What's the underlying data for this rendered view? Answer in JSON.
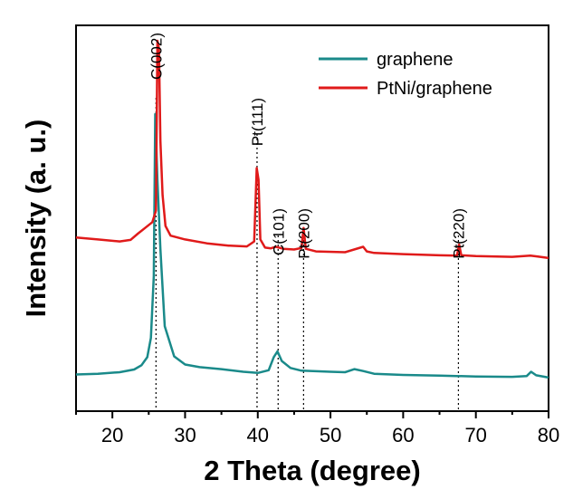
{
  "chart_data": {
    "type": "line",
    "xlabel": "2 Theta (degree)",
    "ylabel": "Intensity (a. u.)",
    "xlim": [
      15,
      80
    ],
    "ylim": [
      0,
      100
    ],
    "xticks": [
      20,
      30,
      40,
      50,
      60,
      70,
      80
    ],
    "y_tick_labels": false,
    "grid": false,
    "legend_position": "top-right",
    "series": [
      {
        "name": "graphene",
        "color": "#1a8a8a",
        "x": [
          15,
          18,
          21,
          23,
          24,
          24.8,
          25.3,
          25.7,
          25.9,
          26.2,
          26.6,
          27.2,
          28.5,
          30,
          32,
          35,
          38,
          40,
          41.5,
          42.2,
          42.7,
          43.3,
          44.5,
          46,
          50,
          52,
          53.3,
          54.5,
          56,
          60,
          65,
          70,
          75,
          77,
          77.6,
          78.3,
          80
        ],
        "y": [
          9.5,
          9.7,
          10.1,
          10.8,
          11.9,
          14,
          19,
          35,
          77,
          60,
          42,
          22,
          14.2,
          12.1,
          11.4,
          10.9,
          10.2,
          9.9,
          10.6,
          14,
          15.5,
          13,
          11.2,
          10.5,
          10.2,
          10.1,
          10.9,
          10.4,
          9.7,
          9.4,
          9.2,
          9,
          8.9,
          9.1,
          10.2,
          9.3,
          8.7
        ]
      },
      {
        "name": "PtNi/graphene",
        "color": "#e01a1a",
        "x": [
          15,
          18,
          21,
          22.5,
          23.5,
          24.5,
          25.5,
          26,
          26.2,
          26.4,
          26.6,
          26.9,
          27.3,
          28,
          30,
          33,
          36,
          38.5,
          39.5,
          39.85,
          40.1,
          40.35,
          41,
          41.8,
          42.5,
          43.5,
          45,
          46.0,
          46.3,
          46.6,
          48,
          52,
          54.5,
          55,
          56,
          60,
          65,
          67.4,
          67.7,
          68,
          70,
          75,
          77.5,
          78.5,
          80
        ],
        "y": [
          45,
          44.5,
          44,
          44.4,
          46,
          47.5,
          49,
          52,
          96,
          94,
          70,
          56,
          48,
          45.5,
          44.5,
          43.5,
          42.9,
          42.7,
          44,
          63,
          60,
          44.5,
          42.4,
          42.2,
          42.6,
          42.1,
          41.9,
          42.3,
          47.5,
          42.1,
          41.4,
          41.2,
          42.6,
          41.4,
          41,
          40.7,
          40.4,
          40.3,
          43.2,
          40.4,
          40.2,
          40,
          40.3,
          40.1,
          39.7
        ]
      }
    ],
    "annotations": [
      {
        "label": "C(002)",
        "x": 26.0
      },
      {
        "label": "Pt(111)",
        "x": 39.9
      },
      {
        "label": "C(101)",
        "x": 42.8
      },
      {
        "label": "Pt(200)",
        "x": 46.3
      },
      {
        "label": "Pt(220)",
        "x": 67.6
      }
    ]
  }
}
